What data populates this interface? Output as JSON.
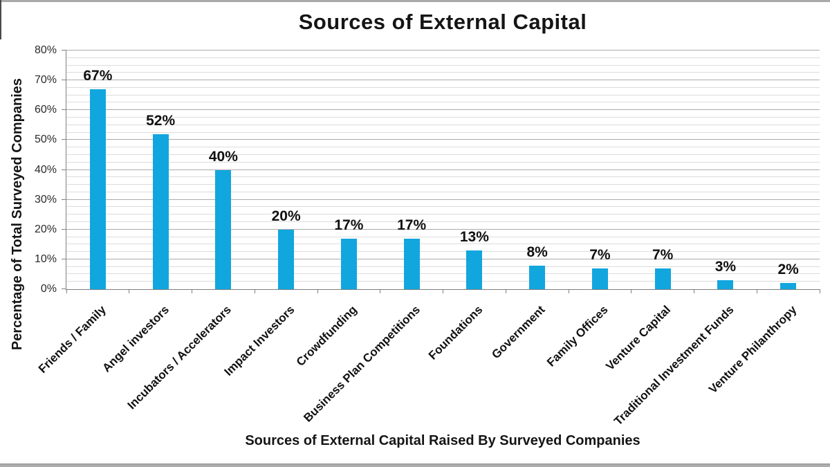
{
  "chart_data": {
    "type": "bar",
    "title": "Sources of External Capital",
    "xlabel": "Sources of External Capital Raised By Surveyed Companies",
    "ylabel": "Percentage of Total Surveyed Companies",
    "categories": [
      "Friends / Family",
      "Angel investors",
      "Incubators / Accelerators",
      "Impact Investors",
      "Crowdfunding",
      "Business Plan Competitions",
      "Foundations",
      "Government",
      "Family Offices",
      "Venture Capital",
      "Traditional Investment Funds",
      "Venture Philanthropy"
    ],
    "values": [
      67,
      52,
      40,
      20,
      17,
      17,
      13,
      8,
      7,
      7,
      3,
      2
    ],
    "value_labels": [
      "67%",
      "52%",
      "40%",
      "20%",
      "17%",
      "17%",
      "13%",
      "8%",
      "7%",
      "7%",
      "3%",
      "2%"
    ],
    "ylim": [
      0,
      80
    ],
    "ytick_step": 10,
    "yminor_step": 2.5,
    "ytick_labels": [
      "0%",
      "10%",
      "20%",
      "30%",
      "40%",
      "50%",
      "60%",
      "70%",
      "80%"
    ],
    "bar_color": "#12a6de",
    "grid": true,
    "legend": "none"
  }
}
